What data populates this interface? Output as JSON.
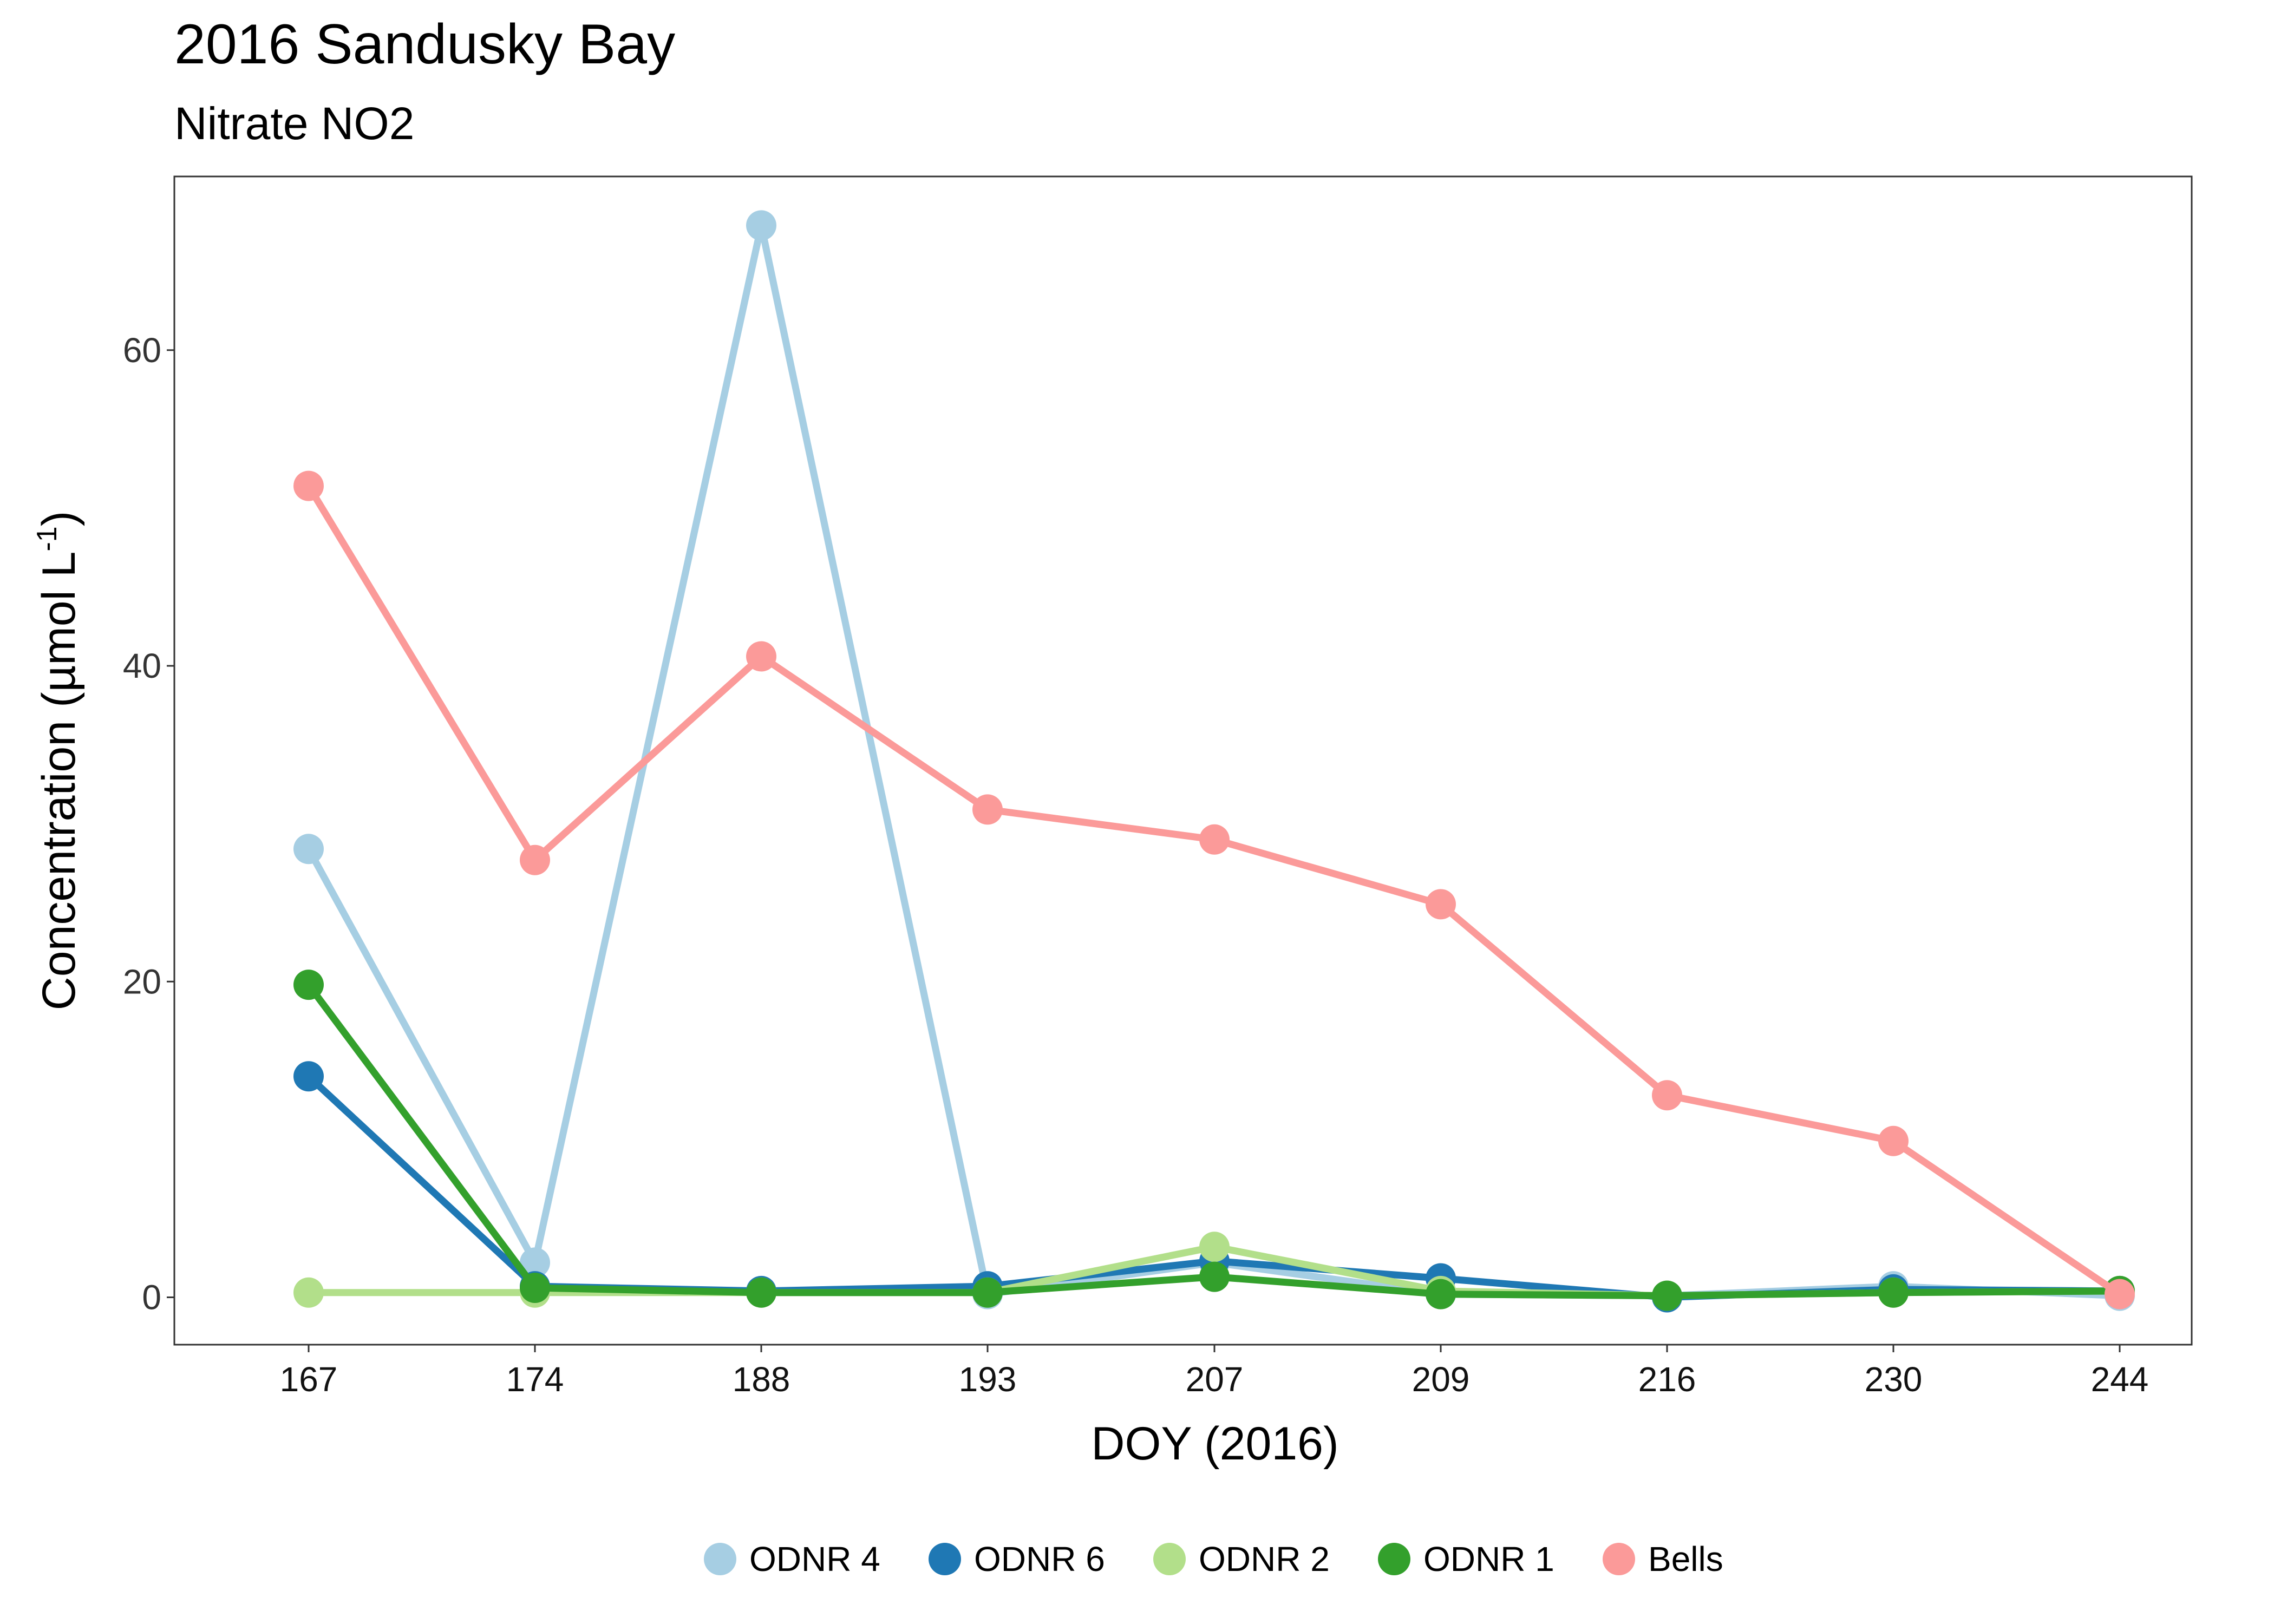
{
  "chart_data": {
    "type": "line",
    "title": "2016 Sandusky Bay",
    "subtitle": "Nitrate NO2",
    "xlabel": "DOY (2016)",
    "ylabel": "Concentration (µmol L",
    "ylabel_superscript": "-1",
    "ylabel_close": ")",
    "categories": [
      "167",
      "174",
      "188",
      "193",
      "207",
      "209",
      "216",
      "230",
      "244"
    ],
    "ylim": [
      -3,
      71
    ],
    "yticks": [
      0,
      20,
      40,
      60
    ],
    "grid": false,
    "legend_position": "bottom",
    "series": [
      {
        "name": "ODNR 4",
        "color": "#a6cee3",
        "values": [
          28.4,
          2.2,
          67.9,
          0.2,
          2.2,
          0.2,
          0.1,
          0.7,
          0.1
        ]
      },
      {
        "name": "ODNR 6",
        "color": "#1f78b4",
        "values": [
          14.0,
          0.7,
          0.4,
          0.7,
          2.3,
          1.2,
          0.0,
          0.5,
          0.4
        ]
      },
      {
        "name": "ODNR 2",
        "color": "#b2df8a",
        "values": [
          0.3,
          0.3,
          0.3,
          0.3,
          3.2,
          0.4,
          0.1,
          0.3,
          0.4
        ]
      },
      {
        "name": "ODNR 1",
        "color": "#33a02c",
        "values": [
          19.8,
          0.6,
          0.3,
          0.3,
          1.3,
          0.2,
          0.1,
          0.3,
          0.4
        ]
      },
      {
        "name": "Bells",
        "color": "#fb9a99",
        "values": [
          51.4,
          27.7,
          40.6,
          30.9,
          29.0,
          24.9,
          12.8,
          9.9,
          0.2
        ]
      }
    ]
  }
}
